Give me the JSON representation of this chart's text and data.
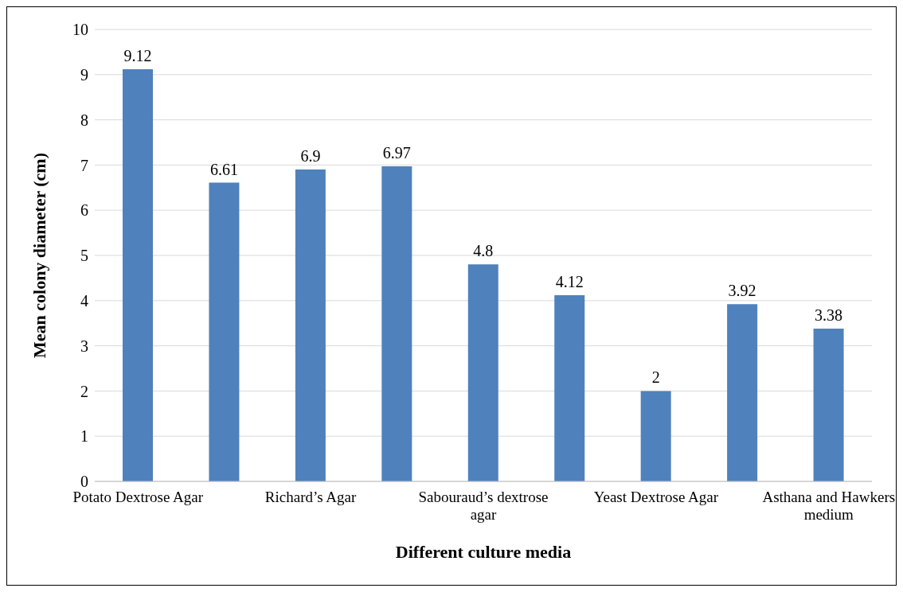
{
  "chart_data": {
    "type": "bar",
    "xlabel": "Different culture media",
    "ylabel": "Mean colony diameter (cm)",
    "categories": [
      "Potato Dextrose Agar",
      null,
      "Richard’s Agar",
      null,
      "Sabouraud’s dextrose agar",
      null,
      "Yeast Dextrose Agar",
      null,
      "Asthana and Hawkers medium"
    ],
    "values": [
      9.12,
      6.61,
      6.9,
      6.97,
      4.8,
      4.12,
      2,
      3.92,
      3.38
    ],
    "color": "#4f81bd",
    "ylim": [
      0,
      10
    ],
    "yticks": [
      0,
      1,
      2,
      3,
      4,
      5,
      6,
      7,
      8,
      9,
      10
    ],
    "grid": "y",
    "data_labels": true
  }
}
